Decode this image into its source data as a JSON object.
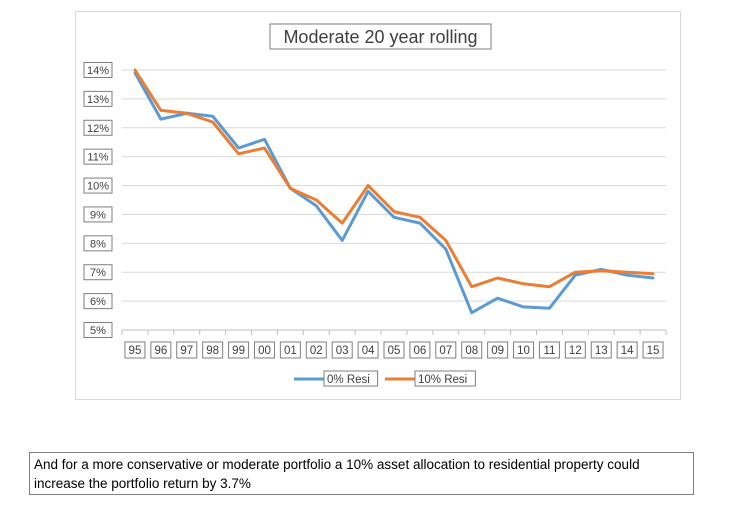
{
  "chart_data": {
    "type": "line",
    "title": "Moderate 20 year rolling",
    "xlabel": "",
    "ylabel": "",
    "categories": [
      "95",
      "96",
      "97",
      "98",
      "99",
      "00",
      "01",
      "02",
      "03",
      "04",
      "05",
      "06",
      "07",
      "08",
      "09",
      "10",
      "11",
      "12",
      "13",
      "14",
      "15"
    ],
    "yticks": [
      "5%",
      "6%",
      "7%",
      "8%",
      "9%",
      "10%",
      "11%",
      "12%",
      "13%",
      "14%"
    ],
    "ylim": [
      5,
      14
    ],
    "grid": true,
    "legend_position": "bottom",
    "series": [
      {
        "name": "0% Resi",
        "color": "#5b9bd5",
        "values": [
          13.9,
          12.3,
          12.5,
          12.4,
          11.3,
          11.6,
          9.9,
          9.3,
          8.1,
          9.8,
          8.9,
          8.7,
          7.8,
          5.6,
          6.1,
          5.8,
          5.75,
          6.9,
          7.1,
          6.9,
          6.8
        ]
      },
      {
        "name": "10% Resi",
        "color": "#ed7d31",
        "values": [
          14.0,
          12.6,
          12.5,
          12.2,
          11.1,
          11.3,
          9.9,
          9.5,
          8.7,
          10.0,
          9.1,
          8.9,
          8.1,
          6.5,
          6.8,
          6.6,
          6.5,
          7.0,
          7.05,
          7.0,
          6.95
        ]
      }
    ]
  },
  "caption": "And for a more conservative or moderate portfolio a 10% asset allocation to residential property could increase the portfolio return by 3.7%"
}
